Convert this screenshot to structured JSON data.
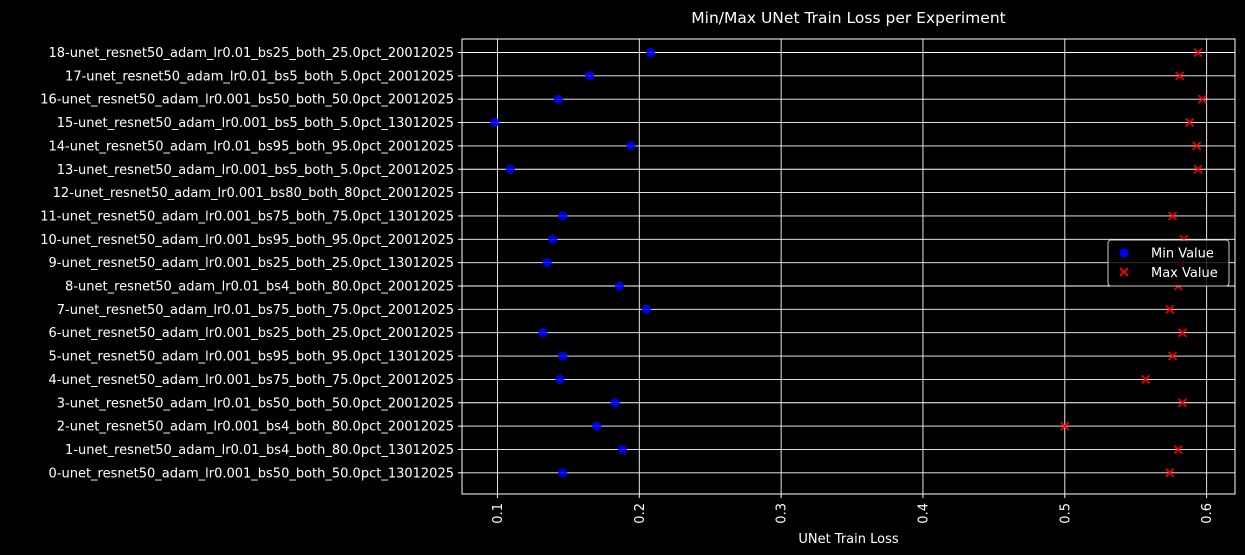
{
  "chart_data": {
    "type": "scatter",
    "title": "Min/Max UNet Train Loss per Experiment",
    "xlabel": "UNet Train Loss",
    "ylabel": "",
    "xlim": [
      0.075,
      0.62
    ],
    "xticks": [
      0.1,
      0.2,
      0.3,
      0.4,
      0.5,
      0.6
    ],
    "xtick_labels": [
      "0.1",
      "0.2",
      "0.3",
      "0.4",
      "0.5",
      "0.6"
    ],
    "grid": true,
    "legend_position": "center-right",
    "categories": [
      "0-unet_resnet50_adam_lr0.001_bs50_both_50.0pct_13012025",
      "1-unet_resnet50_adam_lr0.01_bs4_both_80.0pct_13012025",
      "2-unet_resnet50_adam_lr0.001_bs4_both_80.0pct_20012025",
      "3-unet_resnet50_adam_lr0.01_bs50_both_50.0pct_20012025",
      "4-unet_resnet50_adam_lr0.001_bs75_both_75.0pct_20012025",
      "5-unet_resnet50_adam_lr0.001_bs95_both_95.0pct_13012025",
      "6-unet_resnet50_adam_lr0.001_bs25_both_25.0pct_20012025",
      "7-unet_resnet50_adam_lr0.01_bs75_both_75.0pct_20012025",
      "8-unet_resnet50_adam_lr0.01_bs4_both_80.0pct_20012025",
      "9-unet_resnet50_adam_lr0.001_bs25_both_25.0pct_13012025",
      "10-unet_resnet50_adam_lr0.001_bs95_both_95.0pct_20012025",
      "11-unet_resnet50_adam_lr0.001_bs75_both_75.0pct_13012025",
      "12-unet_resnet50_adam_lr0.001_bs80_both_80pct_20012025",
      "13-unet_resnet50_adam_lr0.001_bs5_both_5.0pct_20012025",
      "14-unet_resnet50_adam_lr0.01_bs95_both_95.0pct_20012025",
      "15-unet_resnet50_adam_lr0.001_bs5_both_5.0pct_13012025",
      "16-unet_resnet50_adam_lr0.001_bs50_both_50.0pct_20012025",
      "17-unet_resnet50_adam_lr0.01_bs5_both_5.0pct_20012025",
      "18-unet_resnet50_adam_lr0.01_bs25_both_25.0pct_20012025"
    ],
    "series": [
      {
        "name": "Min Value",
        "marker": "circle",
        "color": "#0000ff",
        "values": [
          0.146,
          0.188,
          0.17,
          0.183,
          0.144,
          0.146,
          0.132,
          0.205,
          0.186,
          0.135,
          0.139,
          0.146,
          null,
          0.109,
          0.194,
          0.098,
          0.143,
          0.165,
          0.208
        ]
      },
      {
        "name": "Max Value",
        "marker": "x",
        "color": "#ff0000",
        "values": [
          0.574,
          0.58,
          0.5,
          0.583,
          0.557,
          0.576,
          0.583,
          0.574,
          0.58,
          0.582,
          0.584,
          0.576,
          null,
          0.594,
          0.593,
          0.588,
          0.597,
          0.581,
          0.594
        ]
      }
    ]
  }
}
